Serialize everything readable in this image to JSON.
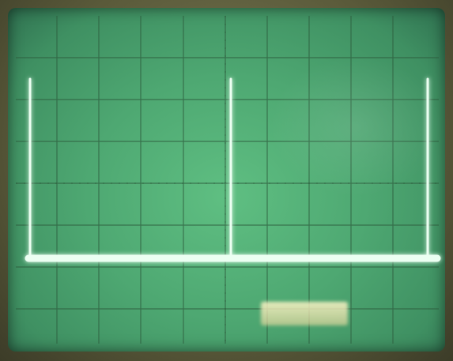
{
  "scope": {
    "phosphor_color": "#4ea872",
    "trace_color": "#ecfff2",
    "grid_color": "#2f5e3f",
    "divisions_x": 10,
    "divisions_y": 8
  }
}
